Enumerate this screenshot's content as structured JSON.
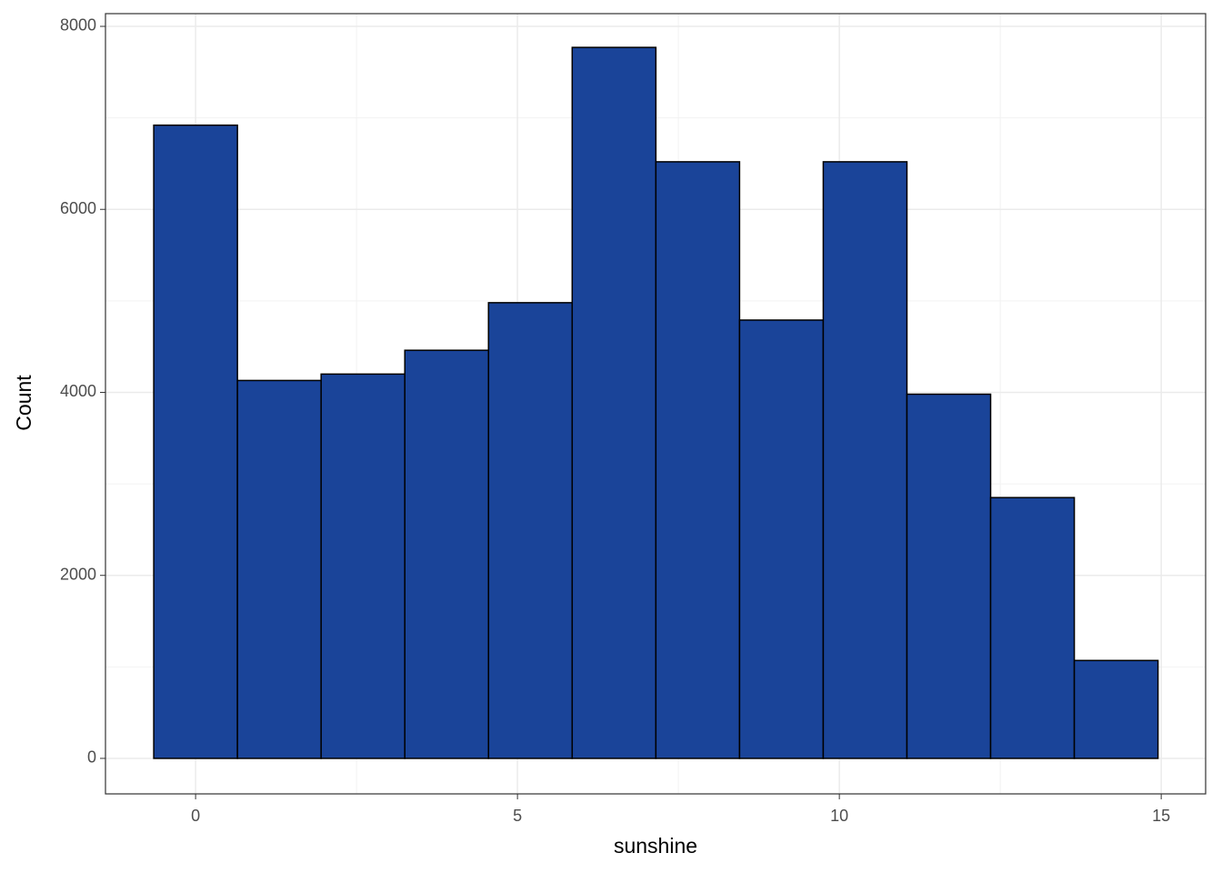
{
  "chart_data": {
    "type": "histogram",
    "x_label": "sunshine",
    "y_label": "Count",
    "bins": [
      -0.65,
      0.65,
      1.95,
      3.25,
      4.55,
      5.85,
      7.15,
      8.45,
      9.75,
      11.05,
      12.35,
      13.65,
      14.95
    ],
    "values": [
      6920,
      4130,
      4200,
      4460,
      4980,
      7770,
      6520,
      4790,
      6520,
      3980,
      2850,
      1070
    ],
    "color": "#1a4499",
    "edgecolor": "#000000",
    "xlim": [
      -1.4,
      15.69
    ],
    "ylim": [
      -388,
      8139
    ],
    "xticks": [
      0,
      5,
      10,
      15
    ],
    "yticks": [
      0,
      2000,
      4000,
      6000,
      8000
    ],
    "x_minor_ticks": [
      2.5,
      7.5,
      12.5
    ],
    "y_minor_ticks": [
      1000,
      3000,
      5000,
      7000
    ],
    "grid": true
  }
}
